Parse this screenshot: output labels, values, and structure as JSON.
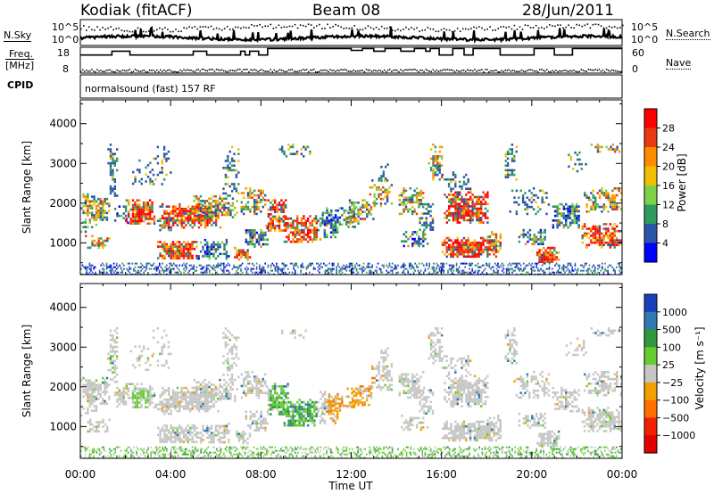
{
  "header": {
    "station": "Kodiak (fitACF)",
    "beam": "Beam 08",
    "date": "28/Jun/2011"
  },
  "summary_panels": {
    "noise": {
      "left_label": "N.Sky",
      "right_label": "N.Search",
      "left_ticks": [
        "10^5",
        "10^0"
      ],
      "right_ticks": [
        "10^5",
        "10^0"
      ]
    },
    "frequency": {
      "left_label_line1": "Freq.",
      "left_label_line2": "[MHz]",
      "left_ticks": [
        "18",
        "8"
      ],
      "right_label": "Nave",
      "right_ticks": [
        "60",
        "0"
      ],
      "steps_mhz": [
        [
          0,
          15
        ],
        [
          1.4,
          16.5
        ],
        [
          2.2,
          15
        ],
        [
          5.0,
          16.5
        ],
        [
          5.6,
          15
        ],
        [
          7.1,
          16.5
        ],
        [
          7.3,
          15
        ],
        [
          7.5,
          16.5
        ],
        [
          7.9,
          15
        ],
        [
          8.3,
          17.5
        ],
        [
          12.0,
          16.8
        ],
        [
          12.5,
          17.5
        ],
        [
          13.0,
          16.5
        ],
        [
          13.5,
          17.5
        ],
        [
          14.2,
          16.5
        ],
        [
          14.8,
          17.5
        ],
        [
          15.3,
          16.5
        ],
        [
          15.5,
          17.5
        ],
        [
          15.9,
          15
        ],
        [
          16.5,
          17.5
        ],
        [
          17.0,
          15
        ],
        [
          17.4,
          17.5
        ],
        [
          18.6,
          15
        ],
        [
          20.1,
          17.5
        ],
        [
          21.0,
          15
        ],
        [
          21.8,
          17.5
        ],
        [
          24.0,
          17.5
        ]
      ]
    },
    "cpid": {
      "label": "CPID",
      "program": "normalsound (fast) 157 RF"
    }
  },
  "chart_data": [
    {
      "type": "heatmap",
      "name": "power",
      "ylabel": "Slant Range [km]",
      "yticks": [
        1000,
        2000,
        3000,
        4000
      ],
      "ylim": [
        200,
        4600
      ],
      "xlim": [
        0,
        24
      ],
      "colorbar": {
        "label": "Power [dB]",
        "ticks": [
          "28",
          "24",
          "20",
          "16",
          "12",
          "8",
          "4"
        ],
        "colors": [
          "#ff0000",
          "#e83a10",
          "#ff8c00",
          "#f0c000",
          "#7fd04a",
          "#2e9a5c",
          "#2b54a8",
          "#0000ff"
        ]
      }
    },
    {
      "type": "heatmap",
      "name": "velocity",
      "ylabel": "Slant Range [km]",
      "yticks": [
        1000,
        2000,
        3000,
        4000
      ],
      "ylim": [
        200,
        4600
      ],
      "xlim": [
        0,
        24
      ],
      "xticks": [
        "00:00",
        "04:00",
        "08:00",
        "12:00",
        "16:00",
        "20:00",
        "00:00"
      ],
      "xlabel": "Time UT",
      "colorbar": {
        "label": "Velocity [m s⁻¹]",
        "ticks": [
          "1000",
          "500",
          "100",
          "25",
          "−25",
          "−100",
          "−500",
          "−1000"
        ],
        "colors": [
          "#1a3fb8",
          "#2f7ab0",
          "#2e9a3c",
          "#66cc33",
          "#c6c6c4",
          "#f0a000",
          "#ff7000",
          "#ee2000",
          "#e00000"
        ]
      }
    }
  ]
}
